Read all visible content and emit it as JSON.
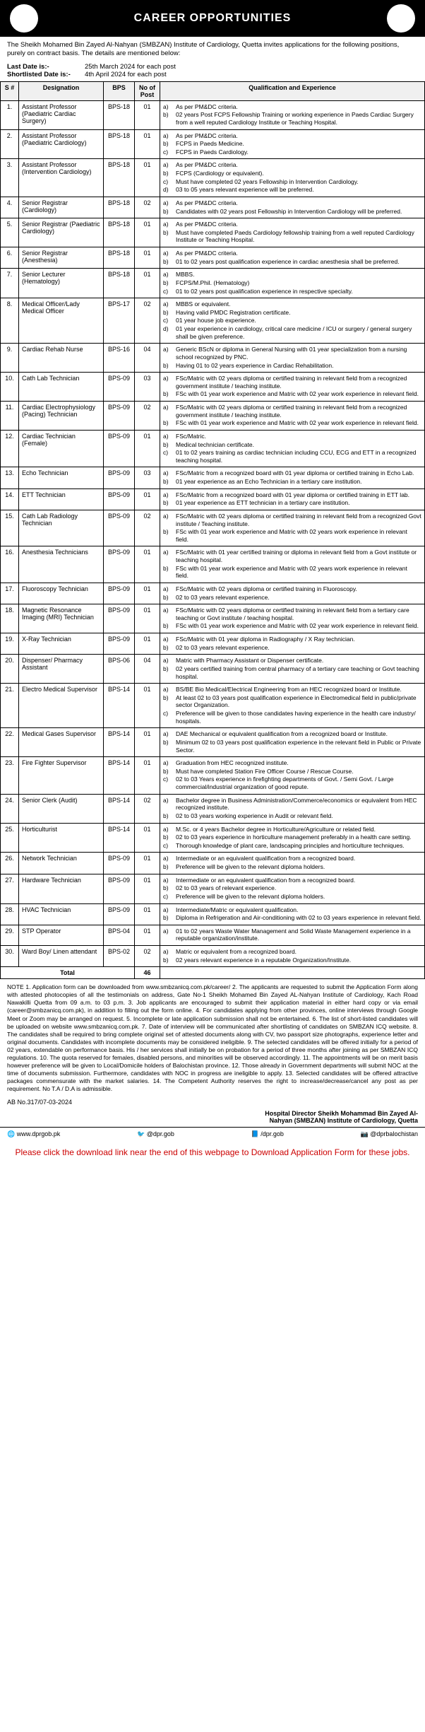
{
  "header": {
    "title": "CAREER OPPORTUNITIES"
  },
  "intro": "The Sheikh Mohamed Bin Zayed Al-Nahyan (SMBZAN) Institute of Cardiology, Quetta invites applications for the following positions, purely on contract basis. The details are mentioned below:",
  "dates": {
    "last_label": "Last Date is:-",
    "last_value": "25th March 2024 for each post",
    "short_label": "Shortlisted Date is:-",
    "short_value": "4th April 2024 for each post"
  },
  "table": {
    "headers": [
      "S #",
      "Designation",
      "BPS",
      "No of Post",
      "Qualification and Experience"
    ],
    "rows": [
      {
        "n": "1.",
        "d": "Assistant Professor (Paediatric Cardiac Surgery)",
        "b": "BPS-18",
        "p": "01",
        "q": [
          [
            "a)",
            "As per PM&DC criteria."
          ],
          [
            "b)",
            "02 years Post FCPS Fellowship Training or working experience in Paeds Cardiac Surgery from a well reputed Cardiology Institute or Teaching Hospital."
          ]
        ]
      },
      {
        "n": "2.",
        "d": "Assistant Professor (Paediatric Cardiology)",
        "b": "BPS-18",
        "p": "01",
        "q": [
          [
            "a)",
            "As per PM&DC criteria."
          ],
          [
            "b)",
            "FCPS in Paeds Medicine."
          ],
          [
            "c)",
            "FCPS in Paeds Cardiology."
          ]
        ]
      },
      {
        "n": "3.",
        "d": "Assistant Professor (Intervention Cardiology)",
        "b": "BPS-18",
        "p": "01",
        "q": [
          [
            "a)",
            "As per PM&DC criteria."
          ],
          [
            "b)",
            "FCPS (Cardiology or equivalent)."
          ],
          [
            "c)",
            "Must have completed 02 years Fellowship in Intervention Cardiology."
          ],
          [
            "d)",
            "03 to 05 years relevant experience will be preferred."
          ]
        ]
      },
      {
        "n": "4.",
        "d": "Senior Registrar (Cardiology)",
        "b": "BPS-18",
        "p": "02",
        "q": [
          [
            "a)",
            "As per PM&DC criteria."
          ],
          [
            "b)",
            "Candidates with 02 years post Fellowship in Intervention Cardiology will be preferred."
          ]
        ]
      },
      {
        "n": "5.",
        "d": "Senior Registrar (Paediatric Cardiology)",
        "b": "BPS-18",
        "p": "01",
        "q": [
          [
            "a)",
            "As per PM&DC criteria."
          ],
          [
            "b)",
            "Must have completed Paeds Cardiology fellowship training from a well reputed Cardiology Institute or Teaching Hospital."
          ]
        ]
      },
      {
        "n": "6.",
        "d": "Senior Registrar (Anesthesia)",
        "b": "BPS-18",
        "p": "01",
        "q": [
          [
            "a)",
            "As per PM&DC criteria."
          ],
          [
            "b)",
            "01 to 02 years post qualification experience in cardiac anesthesia shall be preferred."
          ]
        ]
      },
      {
        "n": "7.",
        "d": "Senior Lecturer (Hematology)",
        "b": "BPS-18",
        "p": "01",
        "q": [
          [
            "a)",
            "MBBS."
          ],
          [
            "b)",
            "FCPS/M.Phil. (Hematology)"
          ],
          [
            "c)",
            "01 to 02 years post qualification experience in respective specialty."
          ]
        ]
      },
      {
        "n": "8.",
        "d": "Medical Officer/Lady Medical Officer",
        "b": "BPS-17",
        "p": "02",
        "q": [
          [
            "a)",
            "MBBS or equivalent."
          ],
          [
            "b)",
            "Having valid PMDC Registration certificate."
          ],
          [
            "c)",
            "01 year house job experience."
          ],
          [
            "d)",
            "01 year experience in cardiology, critical care medicine / ICU or surgery / general surgery shall be given preference."
          ]
        ]
      },
      {
        "n": "9.",
        "d": "Cardiac Rehab Nurse",
        "b": "BPS-16",
        "p": "04",
        "q": [
          [
            "a)",
            "Generic BScN or diploma in General Nursing with 01 year specialization from a nursing school recognized by PNC."
          ],
          [
            "b)",
            "Having 01 to 02 years experience in Cardiac Rehabilitation."
          ]
        ]
      },
      {
        "n": "10.",
        "d": "Cath Lab Technician",
        "b": "BPS-09",
        "p": "03",
        "q": [
          [
            "a)",
            "FSc/Matric with 02 years diploma or certified training in relevant field from a recognized government institute / teaching institute."
          ],
          [
            "b)",
            "FSc with 01 year work experience and Matric with 02 year work experience in relevant field."
          ]
        ]
      },
      {
        "n": "11.",
        "d": "Cardiac Electrophysiology (Pacing) Technician",
        "b": "BPS-09",
        "p": "02",
        "q": [
          [
            "a)",
            "FSc/Matric with 02 years diploma or certified training in relevant field from a recognized government institute / teaching institute."
          ],
          [
            "b)",
            "FSc with 01 year work experience and Matric with 02 year work experience in relevant field."
          ]
        ]
      },
      {
        "n": "12.",
        "d": "Cardiac Technician (Female)",
        "b": "BPS-09",
        "p": "01",
        "q": [
          [
            "a)",
            "FSc/Matric."
          ],
          [
            "b)",
            "Medical technician certificate."
          ],
          [
            "c)",
            "01 to 02 years training as cardiac technician including CCU, ECG and ETT in a recognized teaching hospital."
          ]
        ]
      },
      {
        "n": "13.",
        "d": "Echo Technician",
        "b": "BPS-09",
        "p": "03",
        "q": [
          [
            "a)",
            "FSc/Matric from a recognized board with 01 year diploma or certified training in Echo Lab."
          ],
          [
            "b)",
            "01 year experience as an Echo Technician in a tertiary care institution."
          ]
        ]
      },
      {
        "n": "14.",
        "d": "ETT Technician",
        "b": "BPS-09",
        "p": "01",
        "q": [
          [
            "a)",
            "FSc/Matric from a recognized board with 01 year diploma or certified training in ETT lab."
          ],
          [
            "b)",
            "01 year experience as ETT technician in a tertiary care institution."
          ]
        ]
      },
      {
        "n": "15.",
        "d": "Cath Lab Radiology Technician",
        "b": "BPS-09",
        "p": "02",
        "q": [
          [
            "a)",
            "FSc/Matric with 02 years diploma or certified training in relevant field from a recognized Govt institute / Teaching institute."
          ],
          [
            "b)",
            "FSc with 01 year work experience and Matric with 02 years work experience in relevant field."
          ]
        ]
      },
      {
        "n": "16.",
        "d": "Anesthesia Technicians",
        "b": "BPS-09",
        "p": "01",
        "q": [
          [
            "a)",
            "FSc/Matric with 01 year certified training or diploma in relevant field from a Govt institute or teaching hospital."
          ],
          [
            "b)",
            "FSc with 01 year work experience and Matric with 02 years work experience in relevant field."
          ]
        ]
      },
      {
        "n": "17.",
        "d": "Fluoroscopy Technician",
        "b": "BPS-09",
        "p": "01",
        "q": [
          [
            "a)",
            "FSc/Matric with 02 years diploma or certified training in Fluoroscopy."
          ],
          [
            "b)",
            "02 to 03 years relevant experience."
          ]
        ]
      },
      {
        "n": "18.",
        "d": "Magnetic Resonance Imaging (MRI) Technician",
        "b": "BPS-09",
        "p": "01",
        "q": [
          [
            "a)",
            "FSc/Matric with 02 years diploma or certified training in relevant field from a tertiary care teaching or Govt institute / teaching hospital."
          ],
          [
            "b)",
            "FSc with 01 year work experience and Matric with 02 year work experience in relevant field."
          ]
        ]
      },
      {
        "n": "19.",
        "d": "X-Ray Technician",
        "b": "BPS-09",
        "p": "01",
        "q": [
          [
            "a)",
            "FSc/Matric with 01 year diploma in Radiography / X Ray technician."
          ],
          [
            "b)",
            "02 to 03 years relevant experience."
          ]
        ]
      },
      {
        "n": "20.",
        "d": "Dispenser/ Pharmacy Assistant",
        "b": "BPS-06",
        "p": "04",
        "q": [
          [
            "a)",
            "Matric with Pharmacy Assistant or Dispenser certificate."
          ],
          [
            "b)",
            "02 years certified training from central pharmacy of a tertiary care teaching or Govt teaching hospital."
          ]
        ]
      },
      {
        "n": "21.",
        "d": "Electro Medical Supervisor",
        "b": "BPS-14",
        "p": "01",
        "q": [
          [
            "a)",
            "BS/BE Bio Medical/Electrical Engineering from an HEC recognized board or Institute."
          ],
          [
            "b)",
            "At least 02 to 03 years post qualification experience in Electromedical field in public/private sector Organization."
          ],
          [
            "c)",
            "Preference will be given to those candidates having experience in the health care industry/ hospitals."
          ]
        ]
      },
      {
        "n": "22.",
        "d": "Medical Gases Supervisor",
        "b": "BPS-14",
        "p": "01",
        "q": [
          [
            "a)",
            "DAE Mechanical or equivalent qualification from a recognized board or Institute."
          ],
          [
            "b)",
            "Minimum 02 to 03 years post qualification experience in the relevant field in Public or Private Sector."
          ]
        ]
      },
      {
        "n": "23.",
        "d": "Fire Fighter Supervisor",
        "b": "BPS-14",
        "p": "01",
        "q": [
          [
            "a)",
            "Graduation from HEC recognized institute."
          ],
          [
            "b)",
            "Must have completed Station Fire Officer Course / Rescue Course."
          ],
          [
            "c)",
            "02 to 03 Years experience in firefighting departments of Govt. / Semi Govt. / Large commercial/industrial organization of good repute."
          ]
        ]
      },
      {
        "n": "24.",
        "d": "Senior Clerk (Audit)",
        "b": "BPS-14",
        "p": "02",
        "q": [
          [
            "a)",
            "Bachelor degree in Business Administration/Commerce/economics or equivalent from HEC recognized institute."
          ],
          [
            "b)",
            "02 to 03 years working experience in Audit or relevant field."
          ]
        ]
      },
      {
        "n": "25.",
        "d": "Horticulturist",
        "b": "BPS-14",
        "p": "01",
        "q": [
          [
            "a)",
            "M.Sc. or 4 years Bachelor degree in Horticulture/Agriculture or related field."
          ],
          [
            "b)",
            "02 to 03 years experience in horticulture management preferably in a health care setting."
          ],
          [
            "c)",
            "Thorough knowledge of plant care, landscaping principles and horticulture techniques."
          ]
        ]
      },
      {
        "n": "26.",
        "d": "Network Technician",
        "b": "BPS-09",
        "p": "01",
        "q": [
          [
            "a)",
            "Intermediate or an equivalent qualification from a recognized board."
          ],
          [
            "b)",
            "Preference will be given to the relevant diploma holders."
          ]
        ]
      },
      {
        "n": "27.",
        "d": "Hardware Technician",
        "b": "BPS-09",
        "p": "01",
        "q": [
          [
            "a)",
            "Intermediate or an equivalent qualification from a recognized board."
          ],
          [
            "b)",
            "02 to 03 years of relevant experience."
          ],
          [
            "c)",
            "Preference will be given to the relevant diploma holders."
          ]
        ]
      },
      {
        "n": "28.",
        "d": "HVAC Technician",
        "b": "BPS-09",
        "p": "01",
        "q": [
          [
            "a)",
            "Intermediate/Matric or equivalent qualification."
          ],
          [
            "b)",
            "Diploma in Refrigeration and Air-conditioning with 02 to 03 years experience in relevant field."
          ]
        ]
      },
      {
        "n": "29.",
        "d": "STP Operator",
        "b": "BPS-04",
        "p": "01",
        "q": [
          [
            "a)",
            "01 to 02 years Waste Water Management and Solid Waste Management experience in a reputable organization/institute."
          ]
        ]
      },
      {
        "n": "30.",
        "d": "Ward Boy/ Linen attendant",
        "b": "BPS-02",
        "p": "02",
        "q": [
          [
            "a)",
            "Matric or equivalent from a recognized board."
          ],
          [
            "b)",
            "02 years relevant experience in a reputable Organization/Institute."
          ]
        ]
      }
    ],
    "total_label": "Total",
    "total_value": "46"
  },
  "notes": "NOTE 1. Application form can be downloaded from www.smbzanicq.com.pk/career/ 2. The applicants are requested to submit the Application Form along with attested photocopies of all the testimonials on address, Gate No-1 Sheikh Mohamed Bin Zayed AL-Nahyan Institute of Cardiology, Kach Road Nawakilli Quetta from 09 a.m. to 03 p.m. 3. Job applicants are encouraged to submit their application material in either hard copy or via email (career@smbzanicq.com.pk), in addition to filling out the form online. 4. For candidates applying from other provinces, online interviews through Google Meet or Zoom may be arranged on request. 5. Incomplete or late application submission shall not be entertained. 6. The list of short-listed candidates will be uploaded on website www.smbzanicq.com.pk. 7. Date of interview will be communicated after shortlisting of candidates on SMBZAN ICQ website. 8. The candidates shall be required to bring complete original set of attested documents along with CV, two passport size photographs, experience letter and original documents. Candidates with incomplete documents may be considered ineligible. 9. The selected candidates will be offered initially for a period of 02 years, extendable on performance basis. His / her services shall initially be on probation for a period of three months after joining as per SMBZAN ICQ regulations. 10. The quota reserved for females, disabled persons, and minorities will be observed accordingly. 11. The appointments will be on merit basis however preference will be given to Local/Domicile holders of Balochistan province. 12. Those already in Government departments will submit NOC at the time of documents submission. Furthermore, candidates with NOC in progress are ineligible to apply. 13. Selected candidates will be offered attractive packages commensurate with the market salaries. 14. The Competent Authority reserves the right to increase/decrease/cancel any post as per requirement. No T.A / D.A is admissible.",
  "signature": {
    "line1": "Hospital Director Sheikh Mohammad Bin Zayed Al-",
    "line2": "Nahyan (SMBZAN) Institute of Cardiology, Quetta"
  },
  "ab_no": "AB No.317/07-03-2024",
  "footer": {
    "web": "🌐 www.dprgob.pk",
    "twitter": "🐦 @dpr.gob",
    "fb": "📘 /dpr.gob",
    "insta": "📷 @dprbalochistan"
  },
  "download_note": "Please click the download link near the end of this webpage to Download Application Form for these jobs."
}
